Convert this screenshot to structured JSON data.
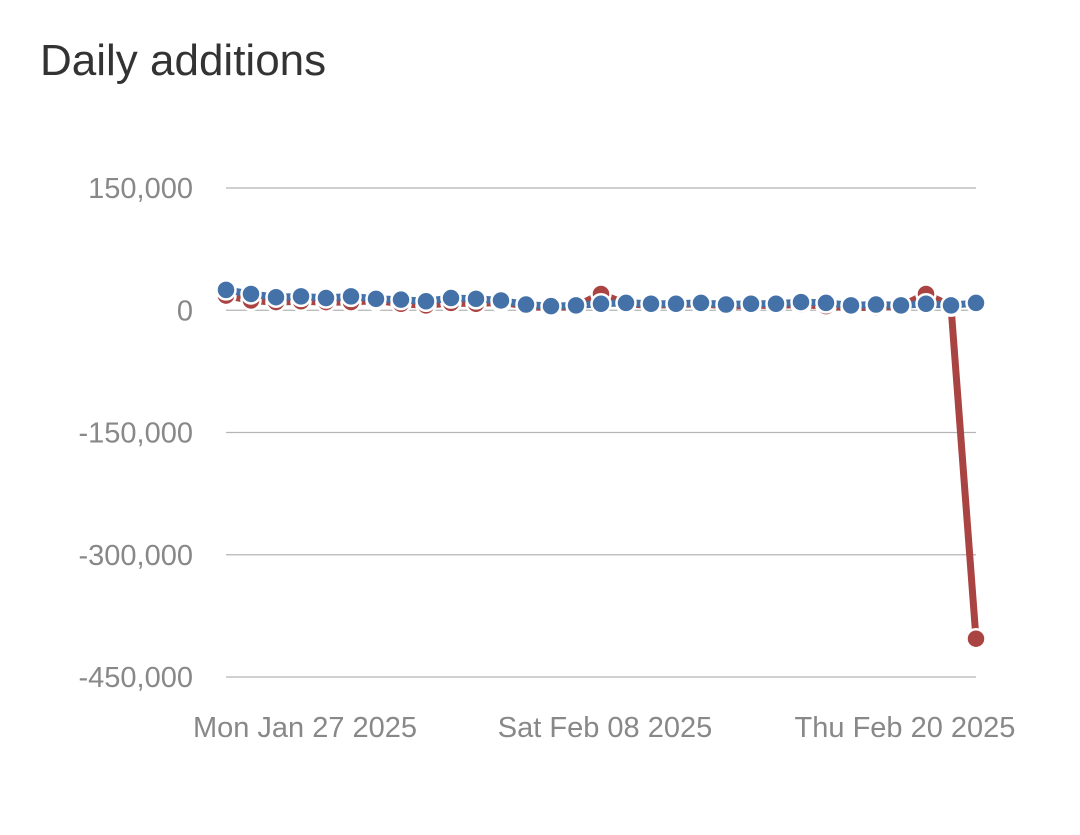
{
  "chart_data": {
    "type": "line",
    "title": "Daily additions",
    "xlabel": "",
    "ylabel": "",
    "x": [
      "2025-01-27",
      "2025-01-28",
      "2025-01-29",
      "2025-01-30",
      "2025-01-31",
      "2025-02-01",
      "2025-02-02",
      "2025-02-03",
      "2025-02-04",
      "2025-02-05",
      "2025-02-06",
      "2025-02-07",
      "2025-02-08",
      "2025-02-09",
      "2025-02-10",
      "2025-02-11",
      "2025-02-12",
      "2025-02-13",
      "2025-02-14",
      "2025-02-15",
      "2025-02-16",
      "2025-02-17",
      "2025-02-18",
      "2025-02-19",
      "2025-02-20",
      "2025-02-21",
      "2025-02-22",
      "2025-02-23",
      "2025-02-24",
      "2025-02-25",
      "2025-02-26"
    ],
    "x_tick_labels": [
      {
        "x": "2025-01-27",
        "label": "Mon Jan 27 2025"
      },
      {
        "x": "2025-02-08",
        "label": "Sat Feb 08 2025"
      },
      {
        "x": "2025-02-20",
        "label": "Thu Feb 20 2025"
      }
    ],
    "y_ticks": [
      {
        "value": 150000,
        "label": "150,000"
      },
      {
        "value": 0,
        "label": "0"
      },
      {
        "value": -150000,
        "label": "-150,000"
      },
      {
        "value": -300000,
        "label": "-300,000"
      },
      {
        "value": -450000,
        "label": "-450,000"
      }
    ],
    "ylim": [
      -450000,
      150000
    ],
    "grid": true,
    "legend": "none",
    "series": [
      {
        "color": "#a94442",
        "values": [
          18000,
          12000,
          10000,
          11000,
          10000,
          10000,
          12000,
          8000,
          6000,
          9000,
          8000,
          10000,
          5000,
          3000,
          5000,
          20000,
          8000,
          6000,
          7000,
          8000,
          5000,
          6000,
          6000,
          7000,
          5000,
          3000,
          4000,
          5000,
          20000,
          5000,
          -403000
        ]
      },
      {
        "color": "#4472a8",
        "values": [
          25000,
          20000,
          16000,
          17000,
          15000,
          17000,
          14000,
          13000,
          11000,
          15000,
          14000,
          12000,
          7000,
          5000,
          6000,
          8000,
          9000,
          8000,
          8000,
          9000,
          7000,
          8000,
          8000,
          10000,
          9000,
          6000,
          7000,
          6000,
          8000,
          6000,
          9000
        ]
      }
    ]
  }
}
